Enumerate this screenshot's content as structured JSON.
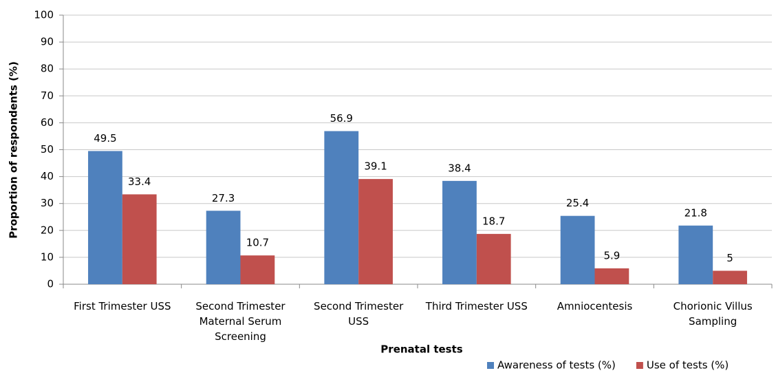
{
  "chart_data": {
    "type": "bar",
    "x_label": "Prenatal tests",
    "y_label": "Proportion of respondents (%)",
    "categories": [
      "First Trimester USS",
      "Second Trimester Maternal Serum Screening",
      "Second Trimester USS",
      "Third Trimester USS",
      "Amniocentesis",
      "Chorionic Villus Sampling"
    ],
    "series": [
      {
        "name": "Awareness of tests (%)",
        "color": "#4f81bd",
        "values": [
          49.5,
          27.3,
          56.9,
          38.4,
          25.4,
          21.8
        ]
      },
      {
        "name": "Use of tests (%)",
        "color": "#c0504d",
        "values": [
          33.4,
          10.7,
          39.1,
          18.7,
          5.9,
          5
        ]
      }
    ],
    "ylim": [
      0,
      100
    ],
    "yticks": [
      0,
      10,
      20,
      30,
      40,
      50,
      60,
      70,
      80,
      90,
      100
    ],
    "grid": true,
    "legend": "bottom-right"
  }
}
